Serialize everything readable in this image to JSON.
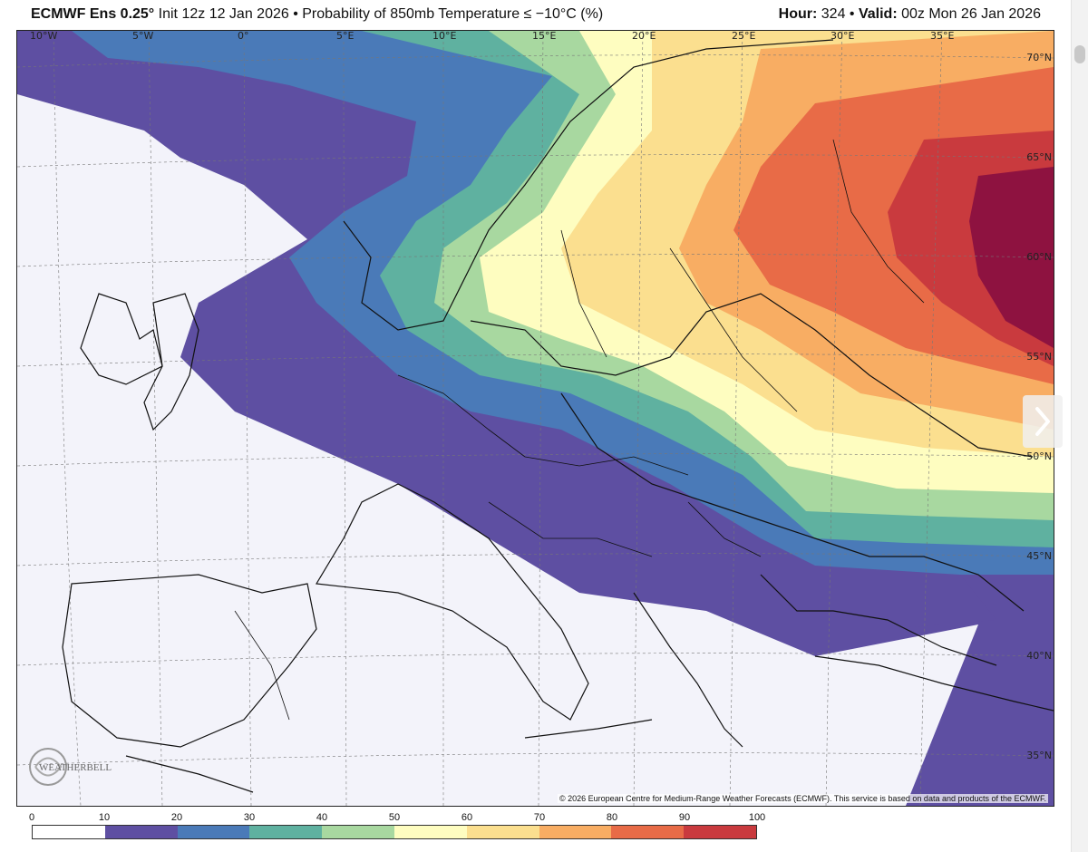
{
  "header": {
    "model": "ECMWF Ens 0.25°",
    "subtitle": "Init 12z 12 Jan 2026 • Probability of 850mb Temperature ≤ −10°C (%)",
    "hour_label": "Hour:",
    "hour_value": "324",
    "valid_label": "Valid:",
    "valid_value": "00z Mon 26 Jan 2026"
  },
  "map": {
    "lon_labels": [
      "10°W",
      "5°W",
      "0°",
      "5°E",
      "10°E",
      "15°E",
      "20°E",
      "25°E",
      "30°E",
      "35°E"
    ],
    "lat_labels": [
      "70°N",
      "65°N",
      "60°N",
      "55°N",
      "50°N",
      "45°N",
      "40°N",
      "35°N"
    ],
    "copyright": "© 2026 European Centre for Medium-Range Weather Forecasts (ECMWF). This service is based on data and products of the ECMWF.",
    "logo_text": "WEATHERBELL"
  },
  "colorbar": {
    "ticks": [
      "0",
      "10",
      "20",
      "30",
      "40",
      "50",
      "60",
      "70",
      "80",
      "90",
      "100"
    ],
    "colors": [
      "#ffffff",
      "#5e4fa2",
      "#4a7ab8",
      "#5fb1a0",
      "#a8d8a0",
      "#fefdc0",
      "#fbdf8f",
      "#f8ad63",
      "#e86b47",
      "#c93a3e",
      "#8e1240"
    ]
  },
  "icons": {
    "next": "chevron-right-icon"
  }
}
